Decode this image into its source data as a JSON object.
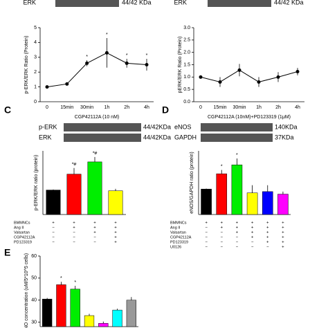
{
  "chart_data": [
    {
      "type": "line",
      "blots": [
        {
          "name": "ERK",
          "size": "44/42 KDa"
        }
      ],
      "y_label": "p-ERK/ERK Ratio (Protein)",
      "x_label": "CGP42112A (10 nM)",
      "categories": [
        "0",
        "15min",
        "30min",
        "1h",
        "2h",
        "4h"
      ],
      "values": [
        1.0,
        1.2,
        2.6,
        3.3,
        2.6,
        2.5
      ],
      "errors": [
        0.05,
        0.1,
        0.2,
        1.0,
        0.3,
        0.4
      ],
      "markers": [
        null,
        null,
        "*",
        "*",
        "*",
        "*"
      ],
      "ylim": [
        0,
        5
      ],
      "yticks": [
        0,
        1,
        2,
        3,
        4,
        5
      ],
      "color": "#000000"
    },
    {
      "type": "line",
      "blots": [
        {
          "name": "ERK",
          "size": "44/42 KDa"
        }
      ],
      "y_label": "pERK/ERK Ratio (Protein)",
      "x_label": "CGP42112A (10nM)+PD123319 (1μM)",
      "categories": [
        "0",
        "15min",
        "30min",
        "1h",
        "2h",
        "4h"
      ],
      "values": [
        1.0,
        0.8,
        1.28,
        0.8,
        1.0,
        1.22
      ],
      "errors": [
        0.05,
        0.2,
        0.25,
        0.2,
        0.2,
        0.15
      ],
      "markers": [
        null,
        null,
        null,
        null,
        null,
        null
      ],
      "ylim": [
        0,
        3
      ],
      "yticks": [
        {
          "value": 0,
          "label": "0.0"
        },
        0.5,
        {
          "value": 1,
          "label": "1.0"
        },
        1.5,
        {
          "value": 2,
          "label": "2.0"
        },
        2.5,
        {
          "value": 3,
          "label": "3.0"
        }
      ],
      "color": "#000000"
    },
    {
      "type": "bar",
      "panel": "C",
      "blots": [
        {
          "name": "p-ERK",
          "size": "44/42KDa"
        },
        {
          "name": "ERK",
          "size": "44/42KDa"
        }
      ],
      "y_label": "p-ERK/ERK ratio (protein)",
      "values": [
        1.0,
        1.65,
        2.15,
        0.97
      ],
      "errors": [
        0.02,
        0.25,
        0.2,
        0.08
      ],
      "markers": [
        null,
        "*#",
        "*#",
        null
      ],
      "colors": [
        "#000000",
        "#ff0000",
        "#00ee00",
        "#ffff00"
      ],
      "ylim": [
        0,
        2.6
      ],
      "treatments": [
        {
          "name": "BMMNCs",
          "signs": [
            "+",
            "+",
            "+",
            "+"
          ]
        },
        {
          "name": "Ang II",
          "signs": [
            "−",
            "+",
            "+",
            "+"
          ]
        },
        {
          "name": "Valsartan",
          "signs": [
            "−",
            "−",
            "+",
            "+"
          ]
        },
        {
          "name": "CGP42112A",
          "signs": [
            "−",
            "−",
            "−",
            "+"
          ]
        },
        {
          "name": "PD123319",
          "signs": [
            "−",
            "−",
            "−",
            "+"
          ]
        }
      ]
    },
    {
      "type": "bar",
      "panel": "D",
      "blots": [
        {
          "name": "eNOS",
          "size": "140KDa"
        },
        {
          "name": "GAPDH",
          "size": "37KDa"
        }
      ],
      "y_label": "eNOS/GAPDH ratio (protein)",
      "values": [
        1.0,
        1.6,
        1.95,
        0.85,
        0.9,
        0.8
      ],
      "errors": [
        0.02,
        0.15,
        0.25,
        0.3,
        0.25,
        0.1
      ],
      "markers": [
        null,
        "*",
        "*",
        null,
        null,
        null
      ],
      "colors": [
        "#000000",
        "#ff0000",
        "#00ee00",
        "#ffff00",
        "#0000ff",
        "#ff00ff"
      ],
      "ylim": [
        0,
        2.5
      ],
      "treatments": [
        {
          "name": "BMMNCs",
          "signs": [
            "+",
            "+",
            "+",
            "+",
            "+",
            "+"
          ]
        },
        {
          "name": "Ang II",
          "signs": [
            "−",
            "+",
            "+",
            "+",
            "+",
            "+"
          ]
        },
        {
          "name": "Valsartan",
          "signs": [
            "−",
            "−",
            "+",
            "+",
            "+",
            "+"
          ]
        },
        {
          "name": "CGP42112A",
          "signs": [
            "−",
            "−",
            "−",
            "+",
            "+",
            "+"
          ]
        },
        {
          "name": "PD123319",
          "signs": [
            "−",
            "−",
            "−",
            "−",
            "+",
            "+"
          ]
        },
        {
          "name": "U0126",
          "signs": [
            "−",
            "−",
            "−",
            "−",
            "−",
            "+"
          ]
        }
      ]
    },
    {
      "type": "bar",
      "panel": "E",
      "y_label": "NO concentration (uM/5*10^5 cells)",
      "values": [
        40.5,
        47,
        45,
        33,
        29.5,
        35.5,
        40
      ],
      "errors": [
        0.5,
        1.3,
        1.5,
        0.8,
        0.8,
        0.6,
        1.4
      ],
      "markers": [
        null,
        "*",
        "*",
        null,
        null,
        null,
        null
      ],
      "colors": [
        "#000000",
        "#ff0000",
        "#00ee00",
        "#ffff00",
        "#ff00ff",
        "#00ffff",
        "#999999"
      ],
      "ylim": [
        28,
        60
      ],
      "yticks": [
        30,
        40,
        50,
        60
      ]
    }
  ]
}
